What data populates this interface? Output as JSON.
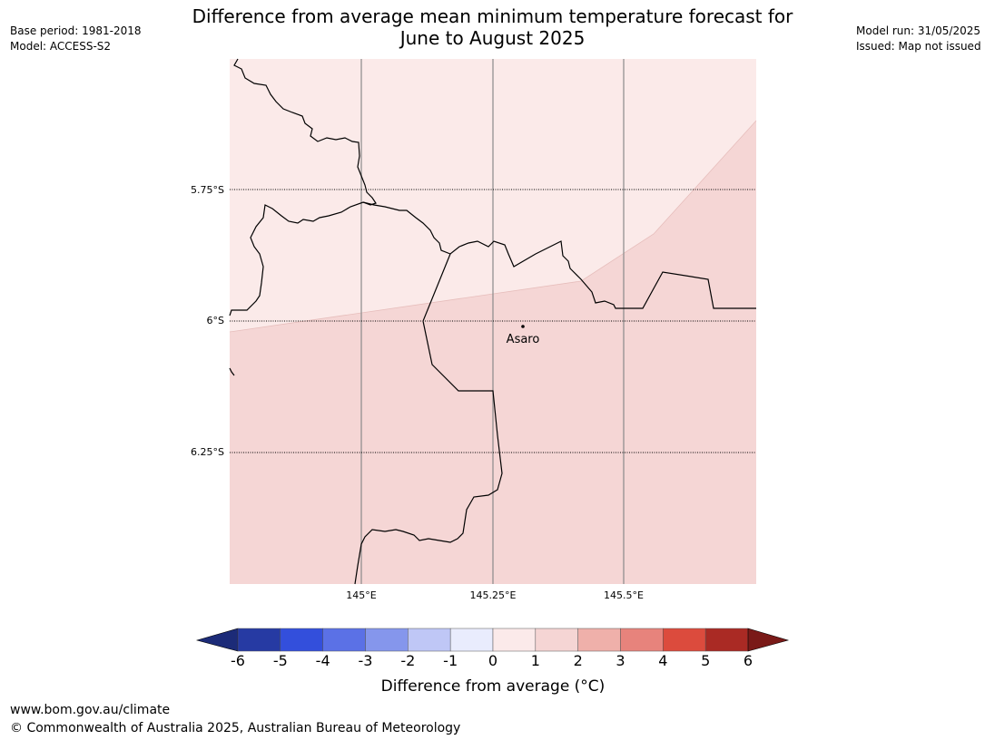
{
  "title": {
    "line1": "Difference from average mean minimum temperature forecast for",
    "line2": "June to August 2025"
  },
  "meta_left": {
    "base_period": "Base period: 1981-2018",
    "model": "Model: ACCESS-S2"
  },
  "meta_right": {
    "model_run": "Model run: 31/05/2025",
    "issued": "Issued: Map not issued"
  },
  "map": {
    "lat_labels": [
      "5.75°S",
      "6°S",
      "6.25°S"
    ],
    "lon_labels": [
      "145°E",
      "145.25°E",
      "145.5°E"
    ],
    "place": {
      "name": "Asaro"
    },
    "fill_colors": {
      "light": "#fbeae9",
      "medium": "#f5d6d5"
    }
  },
  "colorbar": {
    "ticks": [
      "-6",
      "-5",
      "-4",
      "-3",
      "-2",
      "-1",
      "0",
      "1",
      "2",
      "3",
      "4",
      "5",
      "6"
    ],
    "colors": [
      "#263aa3",
      "#334fdc",
      "#5b71e6",
      "#8596ec",
      "#bfc7f6",
      "#e9ecfd",
      "#fbeaea",
      "#f5d5d4",
      "#efb0aa",
      "#e7837c",
      "#dc4b3d",
      "#aa2a24"
    ],
    "extend_low_color": "#1c2b78",
    "extend_high_color": "#7a1a18",
    "label": "Difference from average (°C)"
  },
  "footer": {
    "url": "www.bom.gov.au/climate",
    "copyright": "© Commonwealth of Australia 2025, Australian Bureau of Meteorology"
  }
}
